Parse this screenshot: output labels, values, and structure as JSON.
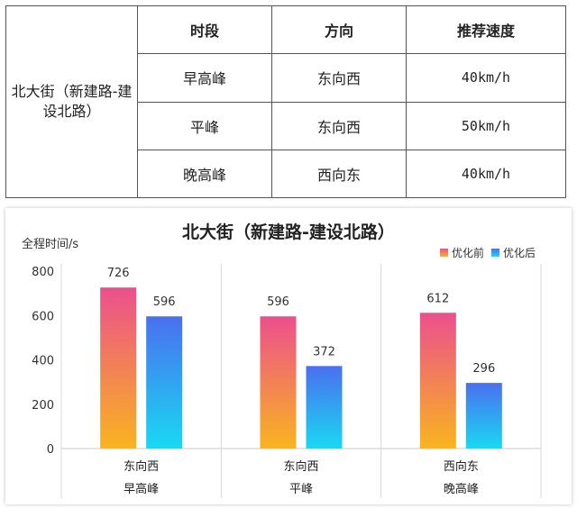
{
  "table": {
    "road": "北大街（新建路-建设北路）",
    "headers": [
      "时段",
      "方向",
      "推荐速度"
    ],
    "rows": [
      {
        "period": "早高峰",
        "direction": "东向西",
        "speed": "40km/h"
      },
      {
        "period": "平峰",
        "direction": "东向西",
        "speed": "50km/h"
      },
      {
        "period": "晚高峰",
        "direction": "西向东",
        "speed": "40km/h"
      }
    ]
  },
  "chart_data": {
    "type": "bar",
    "title": "北大街（新建路-建设北路）",
    "ylabel": "全程时间/s",
    "xlabel": "",
    "ylim": [
      0,
      800
    ],
    "yticks": [
      0,
      200,
      400,
      600,
      800
    ],
    "categories": [
      {
        "direction": "东向西",
        "period": "早高峰"
      },
      {
        "direction": "东向西",
        "period": "平峰"
      },
      {
        "direction": "西向东",
        "period": "晚高峰"
      }
    ],
    "series": [
      {
        "name": "优化前",
        "values": [
          726,
          596,
          612
        ],
        "gradient": [
          "#ec4f8d",
          "#f9b41f"
        ]
      },
      {
        "name": "优化后",
        "values": [
          596,
          372,
          296
        ],
        "gradient": [
          "#4a6ff0",
          "#19d9f2"
        ]
      }
    ],
    "grid": false,
    "legend": "top-right"
  }
}
